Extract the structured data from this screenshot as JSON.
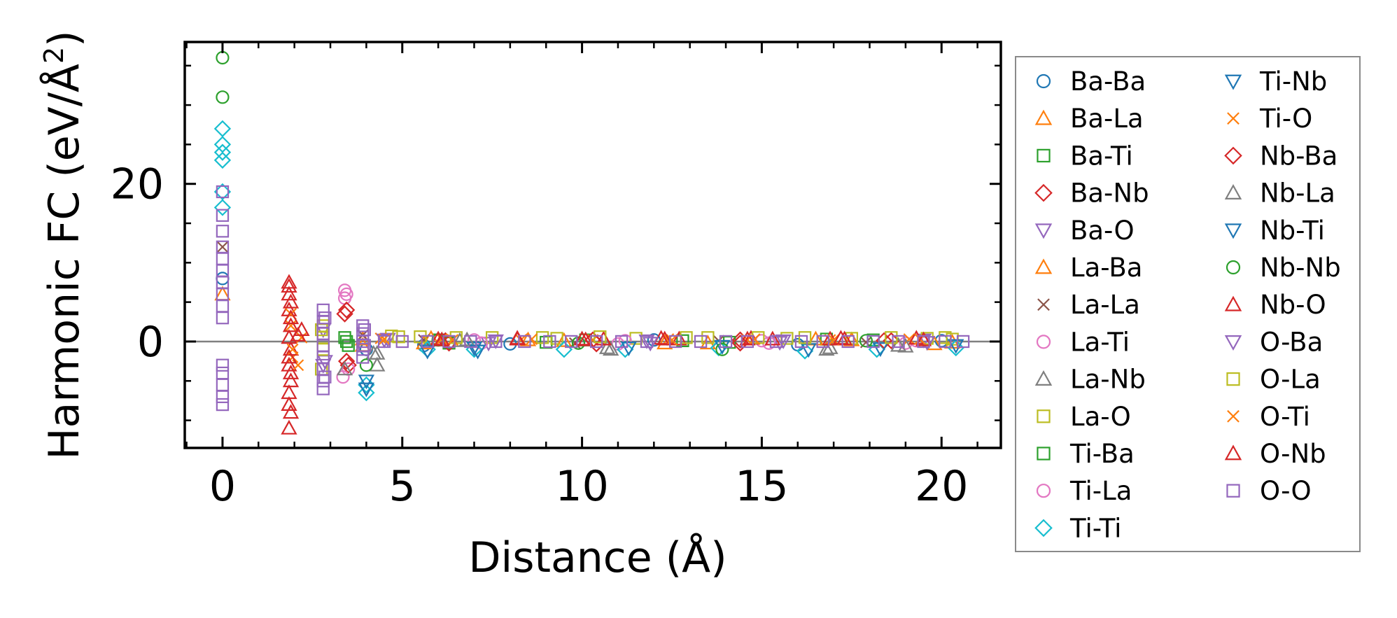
{
  "chart_data": {
    "type": "scatter",
    "xlabel": "Distance (Å)",
    "ylabel": "Harmonic FC (eV/Å²)",
    "ylabel_main": "Harmonic FC (eV/Å",
    "ylabel_sup": "2",
    "ylabel_end": ")",
    "xlim": [
      -1.05,
      21.65
    ],
    "ylim": [
      -13.5,
      38.0
    ],
    "xticks": [
      0,
      5,
      10,
      15,
      20
    ],
    "yticks": [
      0,
      20
    ],
    "xtick_labels": [
      "0",
      "5",
      "10",
      "15",
      "20"
    ],
    "ytick_labels": [
      "0",
      "20"
    ],
    "zero_line": true,
    "grid": false,
    "legend_position": "outside-right",
    "series": [
      {
        "name": "Ba-Ba",
        "marker": "circle",
        "color": "#1f77b4",
        "points": [
          [
            0,
            8.0
          ],
          [
            4.0,
            -1.0
          ],
          [
            5.6,
            -0.5
          ],
          [
            8.0,
            -0.3
          ],
          [
            12.0,
            0.2
          ],
          [
            16.0,
            -0.4
          ],
          [
            20.0,
            0.1
          ]
        ]
      },
      {
        "name": "Ba-La",
        "marker": "triangle-up",
        "color": "#ff7f0e",
        "points": [
          [
            0,
            6.0
          ],
          [
            3.9,
            0.3
          ],
          [
            5.6,
            -0.2
          ],
          [
            9.5,
            0.1
          ],
          [
            13.5,
            -0.2
          ],
          [
            17.5,
            0.2
          ],
          [
            19.8,
            -0.3
          ]
        ]
      },
      {
        "name": "Ba-Ti",
        "marker": "square",
        "color": "#2ca02c",
        "points": [
          [
            3.4,
            0.5
          ],
          [
            3.5,
            -0.5
          ],
          [
            6.0,
            0.2
          ],
          [
            9.0,
            -0.1
          ],
          [
            12.8,
            0.1
          ],
          [
            16.8,
            0.3
          ]
        ]
      },
      {
        "name": "Ba-Nb",
        "marker": "diamond",
        "color": "#d62728",
        "points": [
          [
            3.4,
            3.5
          ],
          [
            3.5,
            -3.0
          ],
          [
            6.2,
            0.1
          ],
          [
            10.4,
            -0.3
          ],
          [
            14.4,
            0.2
          ],
          [
            18.6,
            0.1
          ]
        ]
      },
      {
        "name": "Ba-O",
        "marker": "triangle-down",
        "color": "#9467bd",
        "points": [
          [
            2.8,
            1.5
          ],
          [
            2.8,
            -3.0
          ],
          [
            4.6,
            0.3
          ],
          [
            7.4,
            -0.2
          ],
          [
            11.8,
            0.1
          ],
          [
            15.5,
            -0.1
          ],
          [
            19.5,
            0.2
          ]
        ]
      },
      {
        "name": "La-Ba",
        "marker": "triangle-up",
        "color": "#ff7f0e",
        "points": [
          [
            3.9,
            -0.5
          ],
          [
            5.8,
            0.4
          ],
          [
            8.5,
            0.2
          ],
          [
            12.3,
            -0.2
          ],
          [
            16.5,
            0.3
          ],
          [
            20.3,
            -0.1
          ]
        ]
      },
      {
        "name": "La-La",
        "marker": "x",
        "color": "#8c564b",
        "points": [
          [
            0,
            12.0
          ],
          [
            3.9,
            0.8
          ],
          [
            5.6,
            0.2
          ],
          [
            9.8,
            -0.2
          ],
          [
            13.8,
            0.1
          ],
          [
            17.9,
            -0.1
          ]
        ]
      },
      {
        "name": "La-Ti",
        "marker": "circle",
        "color": "#e377c2",
        "points": [
          [
            3.4,
            6.5
          ],
          [
            3.4,
            5.5
          ],
          [
            3.35,
            -4.5
          ],
          [
            7.0,
            0.2
          ],
          [
            11.0,
            -0.3
          ],
          [
            15.0,
            0.1
          ],
          [
            19.0,
            -0.2
          ]
        ]
      },
      {
        "name": "La-Nb",
        "marker": "triangle-up",
        "color": "#7f7f7f",
        "points": [
          [
            4.3,
            -3.0
          ],
          [
            4.3,
            -1.5
          ],
          [
            6.6,
            0.1
          ],
          [
            10.7,
            -0.8
          ],
          [
            16.8,
            -1.0
          ],
          [
            18.8,
            -0.5
          ]
        ]
      },
      {
        "name": "La-O",
        "marker": "square",
        "color": "#bcbd22",
        "points": [
          [
            2.75,
            -3.5
          ],
          [
            2.8,
            2.0
          ],
          [
            2.8,
            0.5
          ],
          [
            4.7,
            0.7
          ],
          [
            5.5,
            0.6
          ],
          [
            7.5,
            0.5
          ],
          [
            9.3,
            0.4
          ],
          [
            11.5,
            0.4
          ],
          [
            13.5,
            0.5
          ],
          [
            15.7,
            0.4
          ],
          [
            17.5,
            0.4
          ],
          [
            19.6,
            0.4
          ],
          [
            20.3,
            0.3
          ]
        ]
      },
      {
        "name": "Ti-Ba",
        "marker": "square",
        "color": "#2ca02c",
        "points": [
          [
            3.45,
            0.0
          ],
          [
            6.3,
            -0.2
          ],
          [
            10.1,
            0.2
          ],
          [
            14.1,
            -0.1
          ],
          [
            18.1,
            0.2
          ]
        ]
      },
      {
        "name": "Ti-La",
        "marker": "circle",
        "color": "#e377c2",
        "points": [
          [
            3.45,
            6.0
          ],
          [
            3.5,
            -3.5
          ],
          [
            7.2,
            -0.2
          ],
          [
            11.2,
            0.1
          ],
          [
            15.2,
            -0.2
          ],
          [
            19.3,
            0.1
          ]
        ]
      },
      {
        "name": "Ti-Ti",
        "marker": "diamond",
        "color": "#17becf",
        "points": [
          [
            0,
            27.0
          ],
          [
            0,
            25.0
          ],
          [
            0,
            24.0
          ],
          [
            0,
            23.0
          ],
          [
            0,
            19.0
          ],
          [
            0,
            17.0
          ],
          [
            4.0,
            -5.5
          ],
          [
            4.0,
            -6.5
          ],
          [
            5.7,
            -1.0
          ],
          [
            7.0,
            -1.0
          ],
          [
            9.5,
            -1.0
          ],
          [
            11.2,
            -1.0
          ],
          [
            13.8,
            -0.8
          ],
          [
            16.2,
            -1.2
          ],
          [
            18.2,
            -1.0
          ],
          [
            20.4,
            -0.8
          ]
        ]
      },
      {
        "name": "Ti-Nb",
        "marker": "triangle-down",
        "color": "#1f77b4",
        "points": [
          [
            4.0,
            -6.0
          ],
          [
            7.0,
            -0.8
          ],
          [
            13.9,
            -0.6
          ],
          [
            20.4,
            -0.5
          ]
        ]
      },
      {
        "name": "Ti-O",
        "marker": "x",
        "color": "#ff7f0e",
        "points": [
          [
            1.9,
            2.0
          ],
          [
            1.95,
            -2.0
          ],
          [
            2.2,
            0.5
          ],
          [
            4.4,
            0.4
          ],
          [
            6.1,
            0.3
          ],
          [
            8.3,
            0.2
          ],
          [
            10.3,
            0.2
          ],
          [
            12.4,
            0.3
          ],
          [
            14.6,
            0.2
          ],
          [
            16.9,
            0.2
          ],
          [
            19.1,
            0.3
          ]
        ]
      },
      {
        "name": "Nb-Ba",
        "marker": "diamond",
        "color": "#d62728",
        "points": [
          [
            3.45,
            4.0
          ],
          [
            3.45,
            -2.5
          ],
          [
            6.3,
            -0.2
          ],
          [
            10.3,
            0.2
          ],
          [
            14.4,
            -0.2
          ],
          [
            18.4,
            0.1
          ]
        ]
      },
      {
        "name": "Nb-La",
        "marker": "triangle-up",
        "color": "#7f7f7f",
        "points": [
          [
            3.4,
            -3.5
          ],
          [
            4.2,
            -1.5
          ],
          [
            6.8,
            0.2
          ],
          [
            10.8,
            -1.0
          ],
          [
            16.9,
            -0.8
          ],
          [
            19.0,
            -0.6
          ]
        ]
      },
      {
        "name": "Nb-Ti",
        "marker": "triangle-down",
        "color": "#1f77b4",
        "points": [
          [
            4.0,
            -5.0
          ],
          [
            5.7,
            -1.2
          ],
          [
            7.1,
            -1.2
          ],
          [
            11.3,
            -0.8
          ],
          [
            16.3,
            -1.0
          ],
          [
            18.3,
            -0.9
          ]
        ]
      },
      {
        "name": "Nb-Nb",
        "marker": "circle",
        "color": "#2ca02c",
        "points": [
          [
            0,
            36.0
          ],
          [
            0,
            31.0
          ],
          [
            4.0,
            -3.0
          ],
          [
            6.0,
            0.2
          ],
          [
            9.9,
            -0.2
          ],
          [
            13.9,
            -1.0
          ],
          [
            17.9,
            0.1
          ]
        ]
      },
      {
        "name": "Nb-O",
        "marker": "triangle-up",
        "color": "#d62728",
        "points": [
          [
            1.85,
            7.5
          ],
          [
            1.85,
            6.0
          ],
          [
            1.9,
            5.0
          ],
          [
            1.85,
            4.0
          ],
          [
            1.9,
            2.0
          ],
          [
            1.85,
            0.5
          ],
          [
            1.9,
            -1.0
          ],
          [
            1.85,
            -3.0
          ],
          [
            1.9,
            -5.0
          ],
          [
            1.85,
            -8.0
          ],
          [
            1.9,
            -9.0
          ],
          [
            1.85,
            -11.0
          ],
          [
            2.2,
            1.5
          ],
          [
            6.0,
            0.3
          ],
          [
            8.2,
            0.4
          ],
          [
            10.0,
            0.3
          ],
          [
            10.6,
            0.3
          ],
          [
            12.2,
            0.4
          ],
          [
            12.7,
            0.3
          ],
          [
            14.7,
            0.4
          ],
          [
            15.3,
            0.3
          ],
          [
            16.9,
            0.3
          ],
          [
            17.3,
            0.3
          ],
          [
            19.3,
            0.4
          ]
        ]
      },
      {
        "name": "O-Ba",
        "marker": "triangle-down",
        "color": "#9467bd",
        "points": [
          [
            2.85,
            -2.5
          ],
          [
            4.5,
            0.2
          ],
          [
            7.6,
            0.1
          ],
          [
            11.9,
            -0.2
          ],
          [
            15.6,
            0.1
          ],
          [
            19.6,
            -0.1
          ]
        ]
      },
      {
        "name": "O-La",
        "marker": "square",
        "color": "#bcbd22",
        "points": [
          [
            2.75,
            1.5
          ],
          [
            2.8,
            -1.0
          ],
          [
            4.9,
            0.6
          ],
          [
            6.5,
            0.5
          ],
          [
            8.9,
            0.5
          ],
          [
            10.5,
            0.6
          ],
          [
            12.9,
            0.5
          ],
          [
            14.9,
            0.5
          ],
          [
            16.2,
            0.5
          ],
          [
            18.6,
            0.5
          ],
          [
            20.1,
            0.5
          ]
        ]
      },
      {
        "name": "O-Ti",
        "marker": "x",
        "color": "#ff7f0e",
        "points": [
          [
            1.9,
            3.5
          ],
          [
            1.95,
            -1.0
          ],
          [
            2.1,
            -3.0
          ],
          [
            4.5,
            0.3
          ],
          [
            6.4,
            0.2
          ],
          [
            8.6,
            0.3
          ],
          [
            12.5,
            0.2
          ],
          [
            14.8,
            0.3
          ],
          [
            17.0,
            0.2
          ],
          [
            19.4,
            0.3
          ]
        ]
      },
      {
        "name": "O-Nb",
        "marker": "triangle-up",
        "color": "#d62728",
        "points": [
          [
            1.85,
            7.0
          ],
          [
            1.9,
            3.0
          ],
          [
            1.85,
            -2.0
          ],
          [
            1.9,
            -4.0
          ],
          [
            1.85,
            -6.5
          ],
          [
            2.1,
            0.8
          ],
          [
            6.1,
            0.2
          ],
          [
            8.2,
            0.3
          ],
          [
            10.1,
            0.2
          ],
          [
            12.3,
            0.3
          ],
          [
            14.6,
            0.3
          ],
          [
            17.2,
            0.4
          ],
          [
            19.5,
            0.2
          ]
        ]
      },
      {
        "name": "O-O",
        "marker": "square",
        "color": "#9467bd",
        "points": [
          [
            0,
            19.0
          ],
          [
            0,
            16.0
          ],
          [
            0,
            14.0
          ],
          [
            0,
            12.0
          ],
          [
            0,
            10.5
          ],
          [
            0,
            9.0
          ],
          [
            0,
            7.5
          ],
          [
            0,
            6.0
          ],
          [
            0,
            4.5
          ],
          [
            0,
            3.0
          ],
          [
            0,
            -3.0
          ],
          [
            0,
            -4.0
          ],
          [
            0,
            -5.5
          ],
          [
            0,
            -7.0
          ],
          [
            0,
            -8.0
          ],
          [
            2.8,
            4.0
          ],
          [
            2.8,
            2.5
          ],
          [
            2.8,
            1.0
          ],
          [
            2.8,
            -0.5
          ],
          [
            2.8,
            -2.0
          ],
          [
            2.8,
            -3.5
          ],
          [
            2.8,
            -5.0
          ],
          [
            2.8,
            -6.0
          ],
          [
            2.85,
            3.0
          ],
          [
            2.85,
            -4.5
          ],
          [
            3.9,
            2.0
          ],
          [
            3.9,
            1.0
          ],
          [
            3.9,
            0.0
          ],
          [
            3.9,
            -1.0
          ],
          [
            3.9,
            -2.0
          ],
          [
            3.95,
            1.5
          ],
          [
            3.95,
            -0.5
          ],
          [
            4.5,
            0.0
          ],
          [
            5.0,
            0.0
          ],
          [
            5.7,
            0.0
          ],
          [
            6.3,
            0.0
          ],
          [
            6.9,
            0.0
          ],
          [
            7.6,
            0.0
          ],
          [
            8.4,
            0.0
          ],
          [
            9.1,
            0.0
          ],
          [
            9.7,
            0.0
          ],
          [
            10.4,
            0.0
          ],
          [
            11.1,
            0.0
          ],
          [
            11.8,
            0.0
          ],
          [
            12.6,
            0.0
          ],
          [
            13.3,
            0.0
          ],
          [
            14.0,
            0.0
          ],
          [
            14.6,
            0.0
          ],
          [
            15.4,
            0.0
          ],
          [
            16.1,
            0.0
          ],
          [
            16.7,
            0.0
          ],
          [
            17.4,
            0.0
          ],
          [
            18.1,
            0.0
          ],
          [
            18.8,
            0.0
          ],
          [
            19.5,
            0.0
          ],
          [
            20.1,
            0.0
          ],
          [
            20.6,
            0.0
          ]
        ]
      }
    ]
  }
}
